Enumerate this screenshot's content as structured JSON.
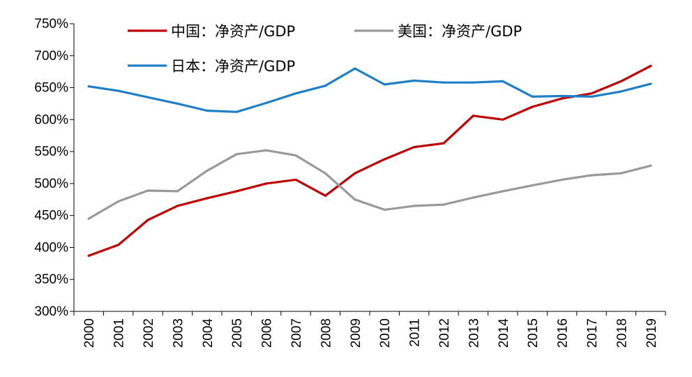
{
  "chart_data": {
    "type": "line",
    "title": "",
    "xlabel": "",
    "ylabel": "",
    "ylim": [
      300,
      750
    ],
    "y_tick_step": 50,
    "y_tick_labels": [
      "300%",
      "350%",
      "400%",
      "450%",
      "500%",
      "550%",
      "600%",
      "650%",
      "700%",
      "750%"
    ],
    "x": [
      "2000",
      "2001",
      "2002",
      "2003",
      "2004",
      "2005",
      "2006",
      "2007",
      "2008",
      "2009",
      "2010",
      "2011",
      "2012",
      "2013",
      "2014",
      "2015",
      "2016",
      "2017",
      "2018",
      "2019"
    ],
    "grid": false,
    "legend_position": "top",
    "series": [
      {
        "name": "中国：净资产/GDP",
        "color": "#c00000",
        "values": [
          387,
          404,
          443,
          465,
          477,
          488,
          500,
          506,
          481,
          516,
          538,
          557,
          563,
          606,
          600,
          620,
          633,
          641,
          660,
          684
        ]
      },
      {
        "name": "美国：净资产/GDP",
        "color": "#999999",
        "values": [
          445,
          472,
          489,
          488,
          520,
          546,
          552,
          544,
          516,
          475,
          459,
          465,
          467,
          478,
          488,
          497,
          506,
          513,
          516,
          528
        ]
      },
      {
        "name": "日本：净资产/GDP",
        "color": "#1f7fc6",
        "values": [
          652,
          645,
          635,
          625,
          614,
          612,
          626,
          641,
          653,
          680,
          655,
          661,
          658,
          658,
          660,
          636,
          637,
          636,
          644,
          656
        ]
      }
    ]
  }
}
